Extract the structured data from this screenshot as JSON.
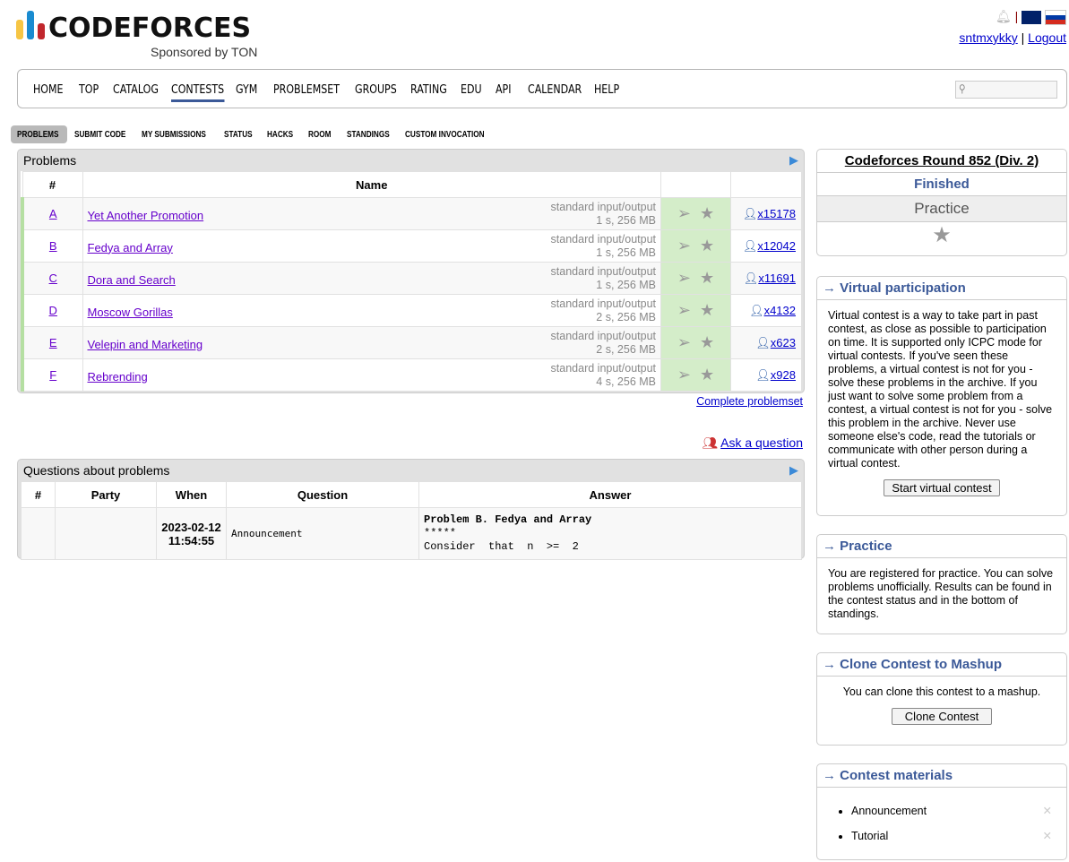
{
  "header": {
    "logo_text": "CODEFORCES",
    "sponsor": "Sponsored by TON",
    "user": "sntmxykky",
    "logout": "Logout",
    "separator": "|"
  },
  "menu": [
    "HOME",
    "TOP",
    "CATALOG",
    "CONTESTS",
    "GYM",
    "PROBLEMSET",
    "GROUPS",
    "RATING",
    "EDU",
    "API",
    "CALENDAR",
    "HELP"
  ],
  "submenu": [
    "PROBLEMS",
    "SUBMIT CODE",
    "MY SUBMISSIONS",
    "STATUS",
    "HACKS",
    "ROOM",
    "STANDINGS",
    "CUSTOM INVOCATION"
  ],
  "problems": {
    "title": "Problems",
    "col_num": "#",
    "col_name": "Name",
    "rows": [
      {
        "id": "A",
        "name": "Yet Another Promotion",
        "io": "standard input/output",
        "limits": "1 s, 256 MB",
        "solved": "x15178"
      },
      {
        "id": "B",
        "name": "Fedya and Array",
        "io": "standard input/output",
        "limits": "1 s, 256 MB",
        "solved": "x12042"
      },
      {
        "id": "C",
        "name": "Dora and Search",
        "io": "standard input/output",
        "limits": "1 s, 256 MB",
        "solved": "x11691"
      },
      {
        "id": "D",
        "name": "Moscow Gorillas",
        "io": "standard input/output",
        "limits": "2 s, 256 MB",
        "solved": "x4132"
      },
      {
        "id": "E",
        "name": "Velepin and Marketing",
        "io": "standard input/output",
        "limits": "2 s, 256 MB",
        "solved": "x623"
      },
      {
        "id": "F",
        "name": "Rebrending",
        "io": "standard input/output",
        "limits": "4 s, 256 MB",
        "solved": "x928"
      }
    ],
    "complete": "Complete problemset"
  },
  "ask": "Ask a question",
  "questions": {
    "title": "Questions about problems",
    "cols": [
      "#",
      "Party",
      "When",
      "Question",
      "Answer"
    ],
    "row": {
      "when": "2023-02-12 11:54:55",
      "question": "Announcement",
      "answer1": "Problem B. Fedya and Array",
      "answer2": "*****",
      "answer3": "Consider  that  n  >=  2"
    }
  },
  "sidebar": {
    "contest": "Codeforces Round 852 (Div. 2)",
    "status": "Finished",
    "mode": "Practice",
    "virtual_title": "→ Virtual participation",
    "virtual_text": "Virtual contest is a way to take part in past contest, as close as possible to participation on time. It is supported only ICPC mode for virtual contests. If you've seen these problems, a virtual contest is not for you - solve these problems in the archive. If you just want to solve some problem from a contest, a virtual contest is not for you - solve this problem in the archive. Never use someone else's code, read the tutorials or communicate with other person during a virtual contest.",
    "virtual_button": "Start virtual contest",
    "practice_title": "→ Practice",
    "practice_text": "You are registered for practice. You can solve problems unofficially. Results can be found in the contest status and in the bottom of standings.",
    "clone_title": "→ Clone Contest to Mashup",
    "clone_text": "You can clone this contest to a mashup.",
    "clone_button": "Clone Contest",
    "materials_title": "→ Contest materials",
    "materials": [
      "Announcement",
      "Tutorial"
    ]
  },
  "colors": {
    "brand": "#3b5998",
    "accepted": "#d4edc9"
  }
}
